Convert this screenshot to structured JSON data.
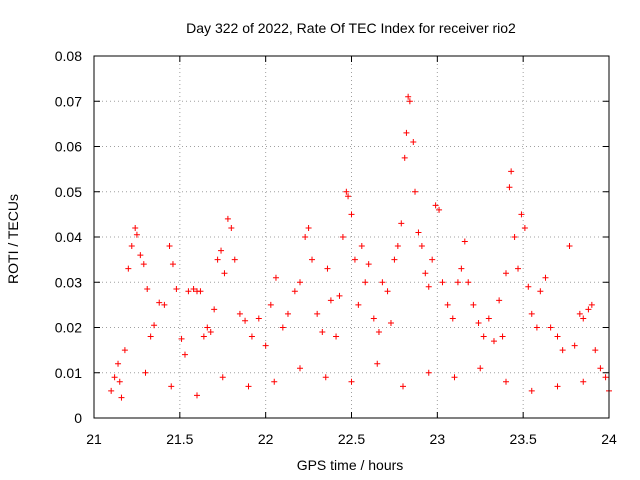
{
  "chart_data": {
    "type": "scatter",
    "title": "Day 322 of 2022, Rate Of TEC Index for receiver rio2",
    "xlabel": "GPS time / hours",
    "ylabel": "ROTI / TECUs",
    "xlim": [
      21,
      24
    ],
    "ylim": [
      0,
      0.08
    ],
    "xticks": [
      21,
      21.5,
      22,
      22.5,
      23,
      23.5,
      24
    ],
    "xtick_labels": [
      "21",
      "21.5",
      "22",
      "22.5",
      "23",
      "23.5",
      "24"
    ],
    "yticks": [
      0,
      0.01,
      0.02,
      0.03,
      0.04,
      0.05,
      0.06,
      0.07,
      0.08
    ],
    "ytick_labels": [
      "0",
      "0.01",
      "0.02",
      "0.03",
      "0.04",
      "0.05",
      "0.06",
      "0.07",
      "0.08"
    ],
    "grid": true,
    "marker": "+",
    "color": "#ff0000",
    "series": [
      {
        "name": "ROTI",
        "points": [
          [
            21.1,
            0.006
          ],
          [
            21.12,
            0.009
          ],
          [
            21.14,
            0.012
          ],
          [
            21.16,
            0.0045
          ],
          [
            21.18,
            0.015
          ],
          [
            21.2,
            0.033
          ],
          [
            21.22,
            0.038
          ],
          [
            21.24,
            0.042
          ],
          [
            21.25,
            0.0405
          ],
          [
            21.27,
            0.036
          ],
          [
            21.29,
            0.034
          ],
          [
            21.31,
            0.0285
          ],
          [
            21.33,
            0.018
          ],
          [
            21.35,
            0.0205
          ],
          [
            21.38,
            0.0255
          ],
          [
            21.41,
            0.025
          ],
          [
            21.44,
            0.038
          ],
          [
            21.46,
            0.034
          ],
          [
            21.48,
            0.0285
          ],
          [
            21.51,
            0.0175
          ],
          [
            21.53,
            0.014
          ],
          [
            21.55,
            0.028
          ],
          [
            21.58,
            0.0285
          ],
          [
            21.6,
            0.028
          ],
          [
            21.62,
            0.028
          ],
          [
            21.64,
            0.018
          ],
          [
            21.66,
            0.02
          ],
          [
            21.68,
            0.019
          ],
          [
            21.7,
            0.024
          ],
          [
            21.72,
            0.035
          ],
          [
            21.74,
            0.037
          ],
          [
            21.76,
            0.032
          ],
          [
            21.78,
            0.044
          ],
          [
            21.8,
            0.042
          ],
          [
            21.82,
            0.035
          ],
          [
            21.85,
            0.023
          ],
          [
            21.88,
            0.0215
          ],
          [
            21.92,
            0.018
          ],
          [
            21.96,
            0.022
          ],
          [
            22.0,
            0.016
          ],
          [
            22.03,
            0.025
          ],
          [
            22.06,
            0.031
          ],
          [
            22.1,
            0.02
          ],
          [
            22.13,
            0.023
          ],
          [
            22.17,
            0.028
          ],
          [
            22.2,
            0.03
          ],
          [
            22.23,
            0.04
          ],
          [
            22.25,
            0.042
          ],
          [
            22.27,
            0.035
          ],
          [
            22.3,
            0.023
          ],
          [
            22.33,
            0.019
          ],
          [
            22.36,
            0.033
          ],
          [
            22.38,
            0.026
          ],
          [
            22.41,
            0.018
          ],
          [
            22.43,
            0.027
          ],
          [
            22.45,
            0.04
          ],
          [
            22.47,
            0.05
          ],
          [
            22.48,
            0.049
          ],
          [
            22.5,
            0.045
          ],
          [
            22.52,
            0.035
          ],
          [
            22.54,
            0.025
          ],
          [
            22.56,
            0.038
          ],
          [
            22.58,
            0.03
          ],
          [
            22.6,
            0.034
          ],
          [
            22.63,
            0.022
          ],
          [
            22.66,
            0.019
          ],
          [
            22.68,
            0.03
          ],
          [
            22.71,
            0.028
          ],
          [
            22.73,
            0.021
          ],
          [
            22.75,
            0.035
          ],
          [
            22.77,
            0.038
          ],
          [
            22.79,
            0.043
          ],
          [
            22.81,
            0.0575
          ],
          [
            22.82,
            0.063
          ],
          [
            22.83,
            0.071
          ],
          [
            22.84,
            0.07
          ],
          [
            22.86,
            0.061
          ],
          [
            22.87,
            0.05
          ],
          [
            22.89,
            0.041
          ],
          [
            22.91,
            0.038
          ],
          [
            22.93,
            0.032
          ],
          [
            22.95,
            0.029
          ],
          [
            22.97,
            0.035
          ],
          [
            22.99,
            0.047
          ],
          [
            23.01,
            0.046
          ],
          [
            23.03,
            0.03
          ],
          [
            23.06,
            0.025
          ],
          [
            23.09,
            0.022
          ],
          [
            23.12,
            0.03
          ],
          [
            23.14,
            0.033
          ],
          [
            23.16,
            0.039
          ],
          [
            23.18,
            0.03
          ],
          [
            23.21,
            0.025
          ],
          [
            23.24,
            0.021
          ],
          [
            23.27,
            0.018
          ],
          [
            23.3,
            0.022
          ],
          [
            23.33,
            0.017
          ],
          [
            23.36,
            0.026
          ],
          [
            23.38,
            0.018
          ],
          [
            23.4,
            0.032
          ],
          [
            23.42,
            0.051
          ],
          [
            23.43,
            0.0545
          ],
          [
            23.45,
            0.04
          ],
          [
            23.47,
            0.033
          ],
          [
            23.49,
            0.045
          ],
          [
            23.51,
            0.042
          ],
          [
            23.53,
            0.029
          ],
          [
            23.55,
            0.023
          ],
          [
            23.58,
            0.02
          ],
          [
            23.6,
            0.028
          ],
          [
            23.63,
            0.031
          ],
          [
            23.66,
            0.02
          ],
          [
            23.7,
            0.018
          ],
          [
            23.73,
            0.015
          ],
          [
            23.77,
            0.038
          ],
          [
            23.8,
            0.016
          ],
          [
            23.83,
            0.023
          ],
          [
            23.85,
            0.022
          ],
          [
            23.88,
            0.024
          ],
          [
            23.9,
            0.025
          ],
          [
            23.92,
            0.015
          ],
          [
            23.95,
            0.011
          ],
          [
            23.98,
            0.009
          ],
          [
            21.15,
            0.008
          ],
          [
            21.3,
            0.01
          ],
          [
            21.45,
            0.007
          ],
          [
            21.6,
            0.005
          ],
          [
            21.75,
            0.009
          ],
          [
            21.9,
            0.007
          ],
          [
            22.05,
            0.008
          ],
          [
            22.2,
            0.011
          ],
          [
            22.35,
            0.009
          ],
          [
            22.5,
            0.008
          ],
          [
            22.65,
            0.012
          ],
          [
            22.8,
            0.007
          ],
          [
            22.95,
            0.01
          ],
          [
            23.1,
            0.009
          ],
          [
            23.25,
            0.011
          ],
          [
            23.4,
            0.008
          ],
          [
            23.55,
            0.006
          ],
          [
            23.7,
            0.007
          ],
          [
            23.85,
            0.008
          ],
          [
            24.0,
            0.006
          ]
        ]
      }
    ]
  }
}
